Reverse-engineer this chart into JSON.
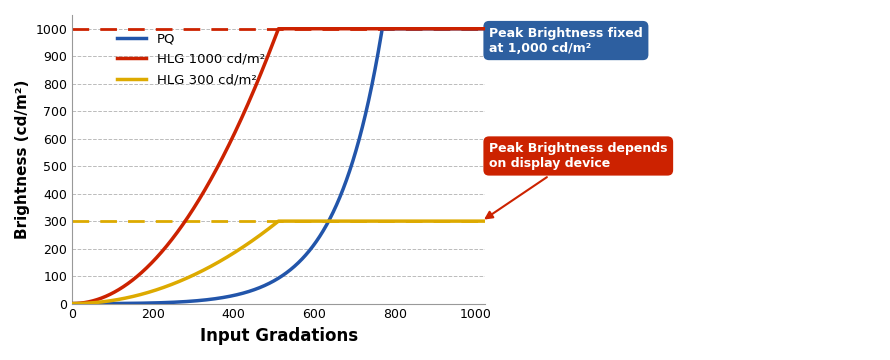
{
  "xlabel": "Input Gradations",
  "ylabel": "Brightness (cd/m²)",
  "xlim": [
    0,
    1024
  ],
  "ylim": [
    0,
    1050
  ],
  "xticks": [
    0,
    200,
    400,
    600,
    800,
    1000
  ],
  "yticks": [
    0,
    100,
    200,
    300,
    400,
    500,
    600,
    700,
    800,
    900,
    1000
  ],
  "bg_color": "#ffffff",
  "grid_color": "#bbbbbb",
  "pq_color": "#2255aa",
  "hlg1000_color": "#cc2200",
  "hlg300_color": "#ddaa00",
  "dashed_1000_color": "#cc2200",
  "dashed_300_color": "#ddaa00",
  "annotation_blue_bg": "#2d5fa0",
  "annotation_red_bg": "#cc2200",
  "annotation_blue_text": "Peak Brightness fixed\nat 1,000 cd/m²",
  "annotation_red_text": "Peak Brightness depends\non display device",
  "legend_labels": [
    "PQ",
    "HLG 1000 cd/m²",
    "HLG 300 cd/m²"
  ],
  "peak_pq": 1000,
  "peak_hlg1000": 1000,
  "peak_hlg300": 300
}
